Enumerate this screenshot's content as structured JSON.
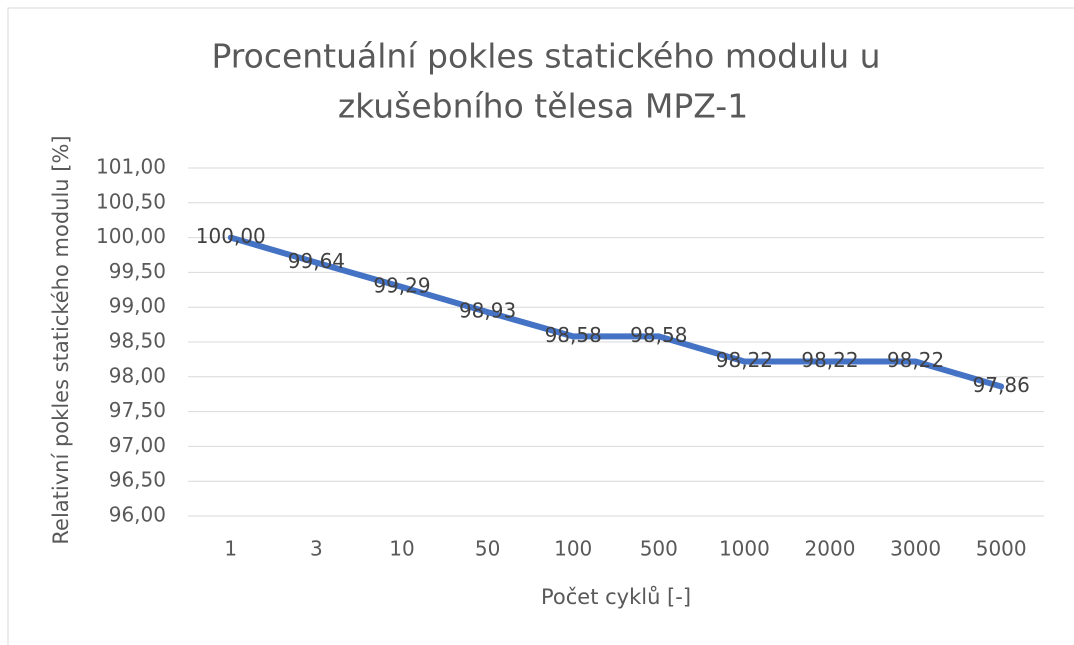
{
  "chart_data": {
    "type": "line",
    "title": [
      "Procentuální pokles statického modulu u",
      "zkušebního tělesa MPZ-1"
    ],
    "x_label": "Počet cyklů [-]",
    "y_label": "Relativní pokles statického modulu [%]",
    "categories": [
      "1",
      "3",
      "10",
      "50",
      "100",
      "500",
      "1000",
      "2000",
      "3000",
      "5000"
    ],
    "series": [
      {
        "name": "MPZ-1",
        "color": "#4472c4",
        "values": [
          100,
          99.64,
          99.29,
          98.93,
          98.58,
          98.58,
          98.22,
          98.22,
          98.22,
          97.86
        ],
        "value_labels": [
          "100,00",
          "99,64",
          "99,29",
          "98,93",
          "98,58",
          "98,58",
          "98,22",
          "98,22",
          "98,22",
          "97,86"
        ]
      }
    ],
    "ylim": [
      96,
      101
    ],
    "yticks": [
      {
        "value": 96,
        "label": "96,00"
      },
      {
        "value": 96.5,
        "label": "96,50"
      },
      {
        "value": 97,
        "label": "97,00"
      },
      {
        "value": 97.5,
        "label": "97,50"
      },
      {
        "value": 98,
        "label": "98,00"
      },
      {
        "value": 98.5,
        "label": "98,50"
      },
      {
        "value": 99,
        "label": "99,00"
      },
      {
        "value": 99.5,
        "label": "99,50"
      },
      {
        "value": 100,
        "label": "100,00"
      },
      {
        "value": 100.5,
        "label": "100,50"
      },
      {
        "value": 101,
        "label": "101,00"
      }
    ],
    "grid": true
  }
}
